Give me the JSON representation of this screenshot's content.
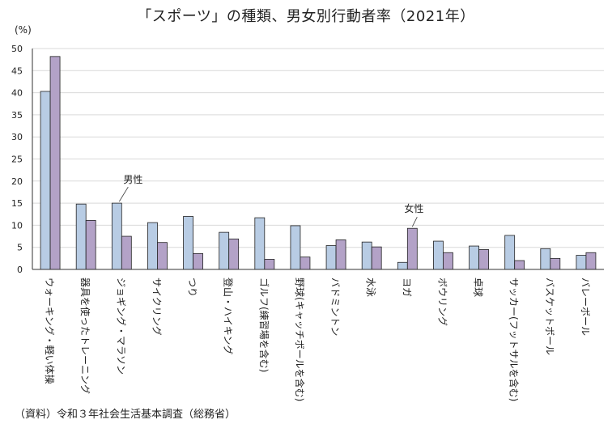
{
  "chart_data": {
    "type": "bar",
    "title": "「スポーツ」の種類、男女別行動者率（2021年）",
    "unit_label": "(%)",
    "ylim": [
      0,
      50
    ],
    "yticks": [
      0,
      5,
      10,
      15,
      20,
      25,
      30,
      35,
      40,
      45,
      50
    ],
    "grid": true,
    "categories": [
      "ウォーキング・軽い体操",
      "器具を使ったトレーニング",
      "ジョギング・マラソン",
      "サイクリング",
      "つり",
      "登山・ハイキング",
      "ゴルフ(練習場を含む)",
      "野球(キャッチボールを含む)",
      "バドミントン",
      "水泳",
      "ヨガ",
      "ボウリング",
      "卓球",
      "サッカー(フットサルを含む)",
      "バスケットボール",
      "バレーボール"
    ],
    "series": [
      {
        "name": "男性",
        "color": "#b8cce4",
        "values": [
          40.3,
          14.8,
          15.0,
          10.6,
          12.0,
          8.4,
          11.7,
          9.9,
          5.4,
          6.2,
          1.6,
          6.4,
          5.3,
          7.7,
          4.7,
          3.2
        ]
      },
      {
        "name": "女性",
        "color": "#b3a2c7",
        "values": [
          48.2,
          11.1,
          7.5,
          6.1,
          3.6,
          6.9,
          2.3,
          2.8,
          6.7,
          5.1,
          9.3,
          3.8,
          4.5,
          2.0,
          2.5,
          3.8
        ]
      }
    ],
    "annotations": [
      {
        "text": "男性"
      },
      {
        "text": "女性"
      }
    ],
    "source": "（資料）令和３年社会生活基本調査（総務省）"
  },
  "colors": {
    "axis": "#333333",
    "grid": "#d9d9d9",
    "bar_stroke": "#222222"
  }
}
